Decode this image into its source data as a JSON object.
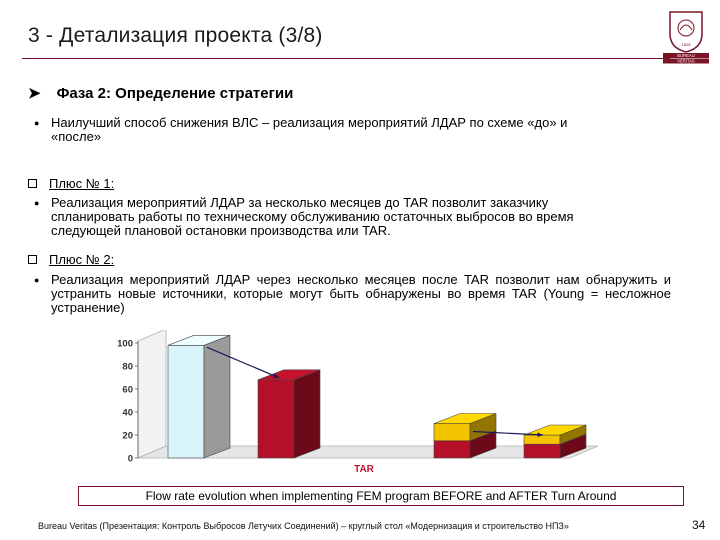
{
  "slide": {
    "title": "3 - Детализация проекта (3/8)",
    "phase_heading": "Фаза 2: Определение стратегии",
    "bullet_1": "Наилучший способ снижения ВЛС – реализация мероприятий ЛДАР по схеме «до» и «после»",
    "plus1_heading": "Плюс № 1:",
    "bullet_2": "Реализация мероприятий ЛДАР за несколько месяцев до TAR позволит заказчику спланировать работы по техническому обслуживанию остаточных выбросов во время следующей плановой остановки производства или TAR.",
    "plus2_heading": "Плюс № 2:",
    "bullet_3": "Реализация мероприятий ЛДАР через несколько месяцев после TAR позволит нам обнаружить и устранить новые источники, которые могут быть обнаружены во время TAR (Young = несложное устранение)",
    "caption": "Flow rate evolution when implementing FEM program BEFORE and AFTER Turn Around",
    "footer": "Bureau Veritas (Презентация: Контроль Выбросов Летучих Соединений) – круглый стол «Модернизация и строительство НПЗ»",
    "page_number": "34",
    "logo": {
      "line1": "BUREAU",
      "line2": "VERITAS",
      "year": "1828"
    }
  },
  "colors": {
    "accent": "#7a1326",
    "bar_initial": "#d9f3fb",
    "bar_red": "#b5102a",
    "bar_yellow": "#f5c400"
  },
  "icons": {
    "phase_marker": "arrowhead-icon",
    "section_marker": "checkbox-icon",
    "bullet": "dot-icon"
  },
  "chart_data": {
    "type": "bar",
    "stacked": true,
    "three_d": true,
    "categories": [
      "",
      "",
      "",
      ""
    ],
    "series": [
      {
        "values": [
          98,
          0,
          0,
          0
        ]
      },
      {
        "values": [
          0,
          68,
          15,
          12
        ]
      },
      {
        "values": [
          0,
          0,
          15,
          8
        ]
      }
    ],
    "ylim": [
      0,
      100
    ],
    "yticks": [
      "0",
      "20",
      "40",
      "60",
      "80",
      "100"
    ],
    "marker_label": "TAR",
    "grid": false,
    "legend": "none"
  }
}
